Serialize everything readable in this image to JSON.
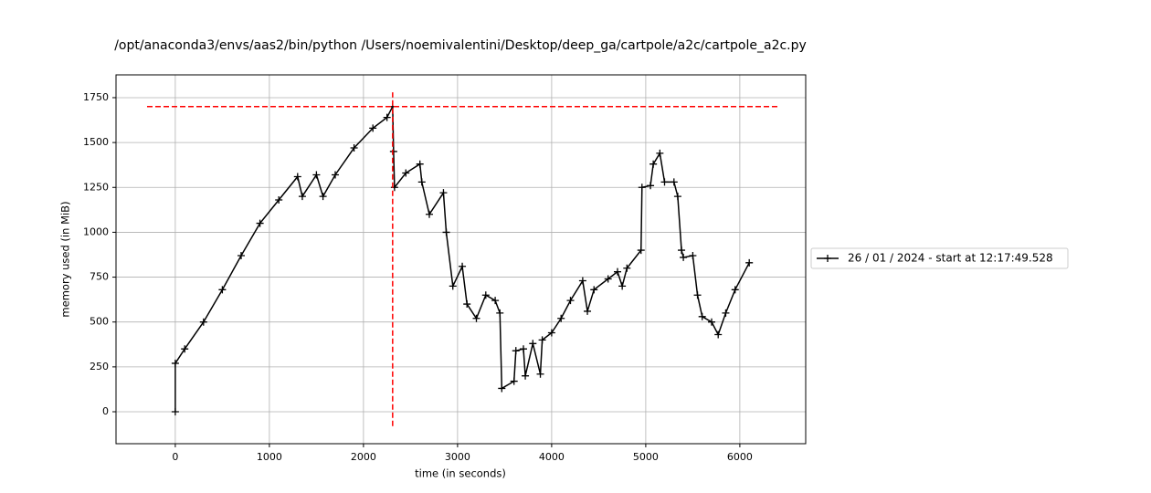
{
  "chart_data": {
    "type": "line",
    "title": "/opt/anaconda3/envs/aas2/bin/python /Users/noemivalentini/Desktop/deep_ga/cartpole/a2c/cartpole_a2c.py",
    "x_label": "time (in seconds)",
    "y_label": "memory used (in MiB)",
    "xlim": [
      -630,
      6700
    ],
    "ylim": [
      -178,
      1877
    ],
    "xticks": [
      0,
      1000,
      2000,
      3000,
      4000,
      5000,
      6000
    ],
    "yticks": [
      0,
      250,
      500,
      750,
      1000,
      1250,
      1500,
      1750
    ],
    "grid": true,
    "legend": "right",
    "series": [
      {
        "name": "26 / 01 / 2024 - start at 12:17:49.528",
        "color": "#000000",
        "x": [
          0,
          0,
          100,
          300,
          500,
          700,
          900,
          1100,
          1300,
          1350,
          1500,
          1570,
          1700,
          1900,
          2100,
          2250,
          2310,
          2320,
          2330,
          2450,
          2600,
          2620,
          2700,
          2850,
          2880,
          2950,
          3050,
          3100,
          3200,
          3300,
          3400,
          3450,
          3470,
          3600,
          3620,
          3700,
          3720,
          3800,
          3880,
          3900,
          4000,
          4100,
          4200,
          4330,
          4380,
          4450,
          4600,
          4700,
          4750,
          4800,
          4950,
          4960,
          5050,
          5080,
          5150,
          5200,
          5300,
          5340,
          5380,
          5400,
          5500,
          5550,
          5600,
          5700,
          5770,
          5850,
          5950,
          6100
        ],
        "values": [
          0,
          270,
          350,
          500,
          680,
          870,
          1050,
          1180,
          1310,
          1200,
          1320,
          1200,
          1320,
          1470,
          1580,
          1640,
          1700,
          1450,
          1250,
          1330,
          1380,
          1280,
          1100,
          1220,
          1000,
          700,
          810,
          600,
          520,
          650,
          620,
          550,
          130,
          170,
          340,
          350,
          200,
          380,
          210,
          400,
          440,
          520,
          620,
          730,
          560,
          680,
          740,
          780,
          700,
          800,
          900,
          1250,
          1260,
          1380,
          1440,
          1280,
          1280,
          1200,
          900,
          860,
          870,
          650,
          530,
          500,
          430,
          550,
          680,
          830
        ]
      }
    ],
    "hline": {
      "y": 1700,
      "xmin": -300,
      "xmax": 6420,
      "color": "#ff0000"
    },
    "vline": {
      "x": 2310,
      "ymin": -80,
      "ymax": 1780,
      "color": "#ff0000"
    }
  }
}
